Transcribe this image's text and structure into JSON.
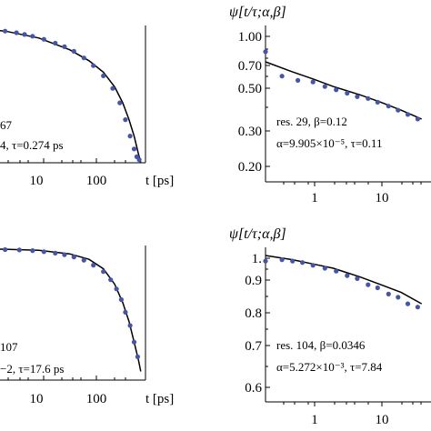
{
  "chart_data": [
    {
      "panel": "top-left",
      "type": "scatter",
      "ylabel": "",
      "xlabel": "t [ps]",
      "x_ticks": [
        "10",
        "100"
      ],
      "log_x": true,
      "log_y": true,
      "annotation_lines": [
        "67",
        "4,  τ=0.274 ps"
      ],
      "x": [
        3,
        4.5,
        6,
        8,
        12,
        18,
        25,
        35,
        50,
        70,
        100,
        140,
        180,
        220,
        260,
        300,
        330,
        360
      ],
      "y": [
        0.99,
        0.96,
        0.93,
        0.9,
        0.85,
        0.79,
        0.74,
        0.68,
        0.6,
        0.52,
        0.43,
        0.34,
        0.26,
        0.19,
        0.14,
        0.11,
        0.095,
        0.09
      ],
      "fit": {
        "x": [
          1,
          3,
          10,
          30,
          60,
          100,
          150,
          200,
          250,
          300,
          350,
          380
        ],
        "y": [
          1.04,
          0.99,
          0.87,
          0.7,
          0.57,
          0.46,
          0.35,
          0.26,
          0.19,
          0.14,
          0.1,
          0.085
        ]
      }
    },
    {
      "panel": "top-right",
      "type": "scatter",
      "ylabel": "ψ[t/τ;α,β]",
      "xlabel": "",
      "x_ticks": [
        "1",
        "10"
      ],
      "y_ticks": [
        "1.00",
        "0.70",
        "0.50",
        "0.30",
        "0.20"
      ],
      "log_x": true,
      "log_y": true,
      "annotation_lines": [
        "res. 29,  β=0.12",
        "α=9.905×10⁻⁵,  τ=0.11"
      ],
      "x": [
        0.2,
        0.35,
        0.6,
        1,
        1.5,
        2.2,
        3.2,
        4.5,
        6.5,
        9,
        13,
        18,
        25,
        35
      ],
      "y": [
        0.81,
        0.61,
        0.58,
        0.57,
        0.54,
        0.52,
        0.5,
        0.48,
        0.47,
        0.45,
        0.43,
        0.41,
        0.39,
        0.37
      ],
      "fit": {
        "x": [
          0.2,
          0.5,
          1,
          2,
          5,
          10,
          20,
          40
        ],
        "y": [
          0.72,
          0.64,
          0.59,
          0.54,
          0.49,
          0.45,
          0.41,
          0.37
        ]
      }
    },
    {
      "panel": "bottom-left",
      "type": "scatter",
      "ylabel": "",
      "xlabel": "t [ps]",
      "x_ticks": [
        "10",
        "100"
      ],
      "log_x": true,
      "log_y": true,
      "annotation_lines": [
        "107",
        "−2,  τ=17.6 ps"
      ],
      "x": [
        3,
        5,
        8,
        12,
        18,
        25,
        35,
        50,
        70,
        100,
        130,
        160,
        190,
        220,
        260,
        300,
        340
      ],
      "y": [
        0.99,
        0.985,
        0.975,
        0.96,
        0.94,
        0.92,
        0.89,
        0.85,
        0.79,
        0.72,
        0.64,
        0.56,
        0.48,
        0.4,
        0.33,
        0.26,
        0.21
      ],
      "fit": {
        "x": [
          1,
          3,
          10,
          30,
          60,
          100,
          150,
          200,
          250,
          300,
          350,
          380
        ],
        "y": [
          1.0,
          0.995,
          0.98,
          0.93,
          0.86,
          0.75,
          0.6,
          0.46,
          0.35,
          0.26,
          0.2,
          0.17
        ]
      }
    },
    {
      "panel": "bottom-right",
      "type": "scatter",
      "ylabel": "ψ[t/τ;α,β]",
      "xlabel": "",
      "x_ticks": [
        "1",
        "10"
      ],
      "y_ticks": [
        "1.",
        "0.9",
        "0.8",
        "0.7",
        "0.6"
      ],
      "log_x": true,
      "log_y": true,
      "annotation_lines": [
        "res. 104,  β=0.0346",
        "α=5.272×10⁻³,  τ=7.84"
      ],
      "x": [
        0.2,
        0.35,
        0.5,
        0.7,
        1,
        1.5,
        2.2,
        3.2,
        4.5,
        6.5,
        9,
        13,
        18,
        25,
        35
      ],
      "y": [
        0.97,
        0.975,
        0.97,
        0.965,
        0.955,
        0.945,
        0.935,
        0.92,
        0.91,
        0.89,
        0.88,
        0.86,
        0.85,
        0.83,
        0.82
      ],
      "fit": {
        "x": [
          0.2,
          0.5,
          1,
          2,
          5,
          10,
          20,
          40
        ],
        "y": [
          0.99,
          0.975,
          0.96,
          0.945,
          0.915,
          0.89,
          0.865,
          0.83
        ]
      }
    }
  ]
}
